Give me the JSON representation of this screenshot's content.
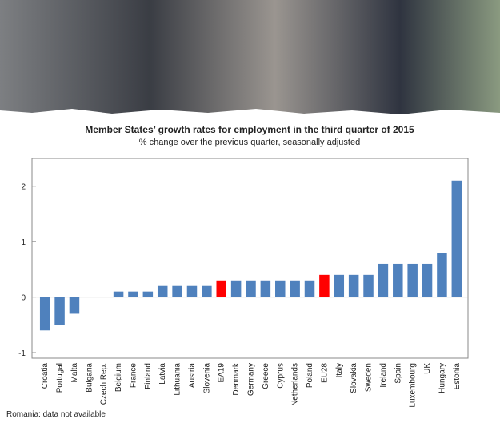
{
  "chart_data": {
    "type": "bar",
    "title": "Member States’ growth rates for employment in the third quarter of 2015",
    "subtitle": "% change over the previous quarter, seasonally adjusted",
    "footnote": "Romania: data not available",
    "categories": [
      "Croatia",
      "Portugal",
      "Malta",
      "Bulgaria",
      "Czech Rep.",
      "Belgium",
      "France",
      "Finland",
      "Latvia",
      "Lithuania",
      "Austria",
      "Slovenia",
      "EA19",
      "Denmark",
      "Germany",
      "Greece",
      "Cyprus",
      "Netherlands",
      "Poland",
      "EU28",
      "Italy",
      "Slovakia",
      "Sweden",
      "Ireland",
      "Spain",
      "Luxembourg",
      "UK",
      "Hungary",
      "Estonia"
    ],
    "values": [
      -0.6,
      -0.5,
      -0.3,
      0,
      0,
      0.1,
      0.1,
      0.1,
      0.2,
      0.2,
      0.2,
      0.2,
      0.3,
      0.3,
      0.3,
      0.3,
      0.3,
      0.3,
      0.3,
      0.4,
      0.4,
      0.4,
      0.4,
      0.6,
      0.6,
      0.6,
      0.6,
      0.8,
      2.1
    ],
    "colors": [
      "#4f81bd",
      "#4f81bd",
      "#4f81bd",
      "#4f81bd",
      "#4f81bd",
      "#4f81bd",
      "#4f81bd",
      "#4f81bd",
      "#4f81bd",
      "#4f81bd",
      "#4f81bd",
      "#4f81bd",
      "#ff0000",
      "#4f81bd",
      "#4f81bd",
      "#4f81bd",
      "#4f81bd",
      "#4f81bd",
      "#4f81bd",
      "#ff0000",
      "#4f81bd",
      "#4f81bd",
      "#4f81bd",
      "#4f81bd",
      "#4f81bd",
      "#4f81bd",
      "#4f81bd",
      "#4f81bd",
      "#4f81bd"
    ],
    "ylim": [
      -1.1,
      2.5
    ],
    "yticks": [
      -1,
      0,
      1,
      2
    ],
    "grid": false
  }
}
